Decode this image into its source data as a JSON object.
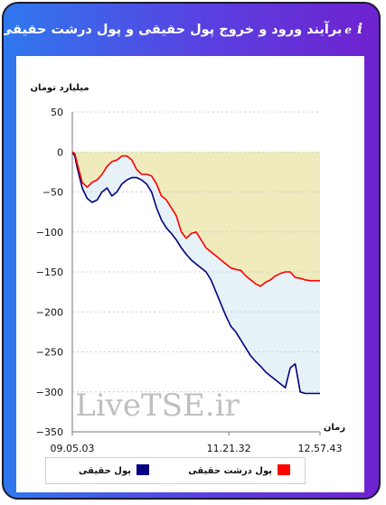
{
  "header": {
    "title": "برآیند ورود و خروج پول حقیقی و پول درشت حقیقی به بازار",
    "info_icon": "info-icon",
    "chart_icon": "link-icon"
  },
  "colors": {
    "frame_gradient_start": "#2f78ee",
    "frame_gradient_end": "#6f22cf",
    "series_real_money": "#000080",
    "series_big_real_money": "#ff0000",
    "fill_big_money_area": "#efebbd",
    "fill_real_money_area": "#e6f2f8"
  },
  "chart_data": {
    "type": "line",
    "ylabel": "میلیارد تومان",
    "xlabel": "زمان",
    "ylim": [
      -350,
      50
    ],
    "yticks": [
      50,
      0,
      -50,
      -100,
      -150,
      -200,
      -250,
      -300,
      -350
    ],
    "x_tick_labels": [
      "09.05.03",
      "11.21.32",
      "12.57.43"
    ],
    "x_tick_fractions": [
      0,
      0.632,
      1
    ],
    "grid": "horizontal-dashed",
    "legend_position": "bottom",
    "watermark": "LiveTSE.ir",
    "series": [
      {
        "name": "پول حقیقی",
        "color": "#000080",
        "x": [
          0,
          0.01,
          0.02,
          0.04,
          0.06,
          0.08,
          0.1,
          0.12,
          0.14,
          0.16,
          0.18,
          0.2,
          0.22,
          0.24,
          0.26,
          0.28,
          0.3,
          0.32,
          0.34,
          0.36,
          0.38,
          0.4,
          0.42,
          0.44,
          0.46,
          0.48,
          0.5,
          0.52,
          0.54,
          0.56,
          0.58,
          0.6,
          0.62,
          0.64,
          0.66,
          0.68,
          0.7,
          0.72,
          0.74,
          0.76,
          0.78,
          0.8,
          0.82,
          0.84,
          0.86,
          0.88,
          0.9,
          0.92,
          0.94,
          0.96,
          0.98,
          1.0
        ],
        "y": [
          0,
          -5,
          -20,
          -45,
          -58,
          -63,
          -60,
          -50,
          -45,
          -55,
          -50,
          -40,
          -35,
          -32,
          -32,
          -35,
          -40,
          -50,
          -70,
          -85,
          -95,
          -102,
          -110,
          -120,
          -128,
          -135,
          -140,
          -145,
          -150,
          -160,
          -175,
          -190,
          -205,
          -218,
          -225,
          -235,
          -245,
          -255,
          -262,
          -268,
          -275,
          -280,
          -285,
          -290,
          -295,
          -270,
          -265,
          -300,
          -302,
          -302,
          -302,
          -302
        ]
      },
      {
        "name": "پول درشت حقیقی",
        "color": "#ff0000",
        "x": [
          0,
          0.01,
          0.02,
          0.04,
          0.06,
          0.08,
          0.1,
          0.12,
          0.14,
          0.16,
          0.18,
          0.2,
          0.22,
          0.24,
          0.26,
          0.28,
          0.3,
          0.32,
          0.34,
          0.36,
          0.38,
          0.4,
          0.42,
          0.44,
          0.46,
          0.48,
          0.5,
          0.52,
          0.54,
          0.56,
          0.58,
          0.6,
          0.62,
          0.64,
          0.66,
          0.68,
          0.7,
          0.72,
          0.74,
          0.76,
          0.78,
          0.8,
          0.82,
          0.84,
          0.86,
          0.88,
          0.9,
          0.92,
          0.94,
          0.96,
          0.98,
          1.0
        ],
        "y": [
          0,
          -2,
          -15,
          -38,
          -44,
          -38,
          -35,
          -28,
          -18,
          -12,
          -10,
          -5,
          -5,
          -10,
          -22,
          -28,
          -28,
          -30,
          -40,
          -55,
          -60,
          -70,
          -80,
          -100,
          -108,
          -102,
          -100,
          -110,
          -120,
          -125,
          -130,
          -135,
          -140,
          -145,
          -147,
          -148,
          -155,
          -160,
          -165,
          -168,
          -163,
          -160,
          -155,
          -152,
          -150,
          -150,
          -157,
          -158,
          -160,
          -161,
          -161,
          -161
        ]
      }
    ]
  },
  "legend": {
    "items": [
      {
        "label": "پول درشت حقیقی",
        "color": "#ff0000"
      },
      {
        "label": "پول حقیقی",
        "color": "#000080"
      }
    ]
  }
}
